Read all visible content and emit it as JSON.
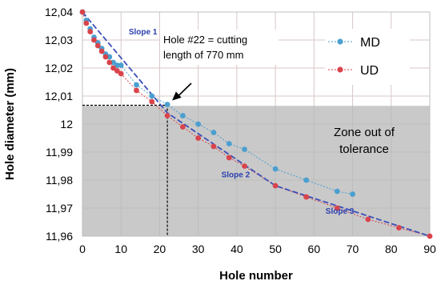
{
  "chart_data": {
    "type": "line",
    "xlabel": "Hole number",
    "ylabel": "Hole diameter (mm)",
    "xlim": [
      0,
      90
    ],
    "ylim": [
      11.96,
      12.04
    ],
    "xticks": [
      "0",
      "10",
      "20",
      "30",
      "40",
      "50",
      "60",
      "70",
      "80",
      "90"
    ],
    "yticks": [
      "11,96",
      "11,97",
      "11,98",
      "11,99",
      "12",
      "12,01",
      "12,02",
      "12,03",
      "12,04"
    ],
    "grid": true,
    "legend_position": "top-right",
    "series": [
      {
        "name": "MD",
        "color": "#4a9fd0",
        "line_style": "dotted",
        "x": [
          0,
          1,
          2,
          3,
          4,
          5,
          6,
          7,
          8,
          9,
          10,
          14,
          18,
          22,
          26,
          30,
          34,
          38,
          42,
          50,
          58,
          66,
          70
        ],
        "y": [
          12.04,
          12.037,
          12.034,
          12.031,
          12.029,
          12.027,
          12.025,
          12.024,
          12.022,
          12.021,
          12.021,
          12.014,
          12.01,
          12.007,
          12.003,
          12.0,
          11.997,
          11.993,
          11.991,
          11.984,
          11.98,
          11.976,
          11.975
        ]
      },
      {
        "name": "UD",
        "color": "#d9434b",
        "line_style": "dotted",
        "x": [
          0,
          1,
          2,
          3,
          4,
          5,
          6,
          7,
          8,
          9,
          10,
          14,
          18,
          22,
          26,
          30,
          34,
          38,
          42,
          50,
          58,
          66,
          74,
          82,
          90
        ],
        "y": [
          12.04,
          12.036,
          12.033,
          12.03,
          12.028,
          12.026,
          12.024,
          12.022,
          12.02,
          12.019,
          12.018,
          12.012,
          12.008,
          12.003,
          11.999,
          11.995,
          11.992,
          11.988,
          11.985,
          11.978,
          11.974,
          11.97,
          11.966,
          11.963,
          11.96
        ]
      }
    ],
    "trend_line": {
      "color": "#3c4fb8",
      "x": [
        0,
        22,
        50,
        90
      ],
      "y": [
        12.04,
        12.004,
        11.978,
        11.96
      ]
    },
    "tolerance_zone": {
      "y_max": 12.0065,
      "label_line1": "Zone out of",
      "label_line2": "tolerance",
      "color": "#c9c9c9"
    },
    "annotation": {
      "line1": "Hole #22 = cutting",
      "line2": "length of 770 mm",
      "point_x": 22,
      "point_y": 12.007
    },
    "slopes": [
      {
        "label": "Slope 1",
        "x": 12,
        "y": 12.032
      },
      {
        "label": "Slope 2",
        "x": 36,
        "y": 11.981
      },
      {
        "label": "Slope 3",
        "x": 63,
        "y": 11.968
      }
    ]
  }
}
